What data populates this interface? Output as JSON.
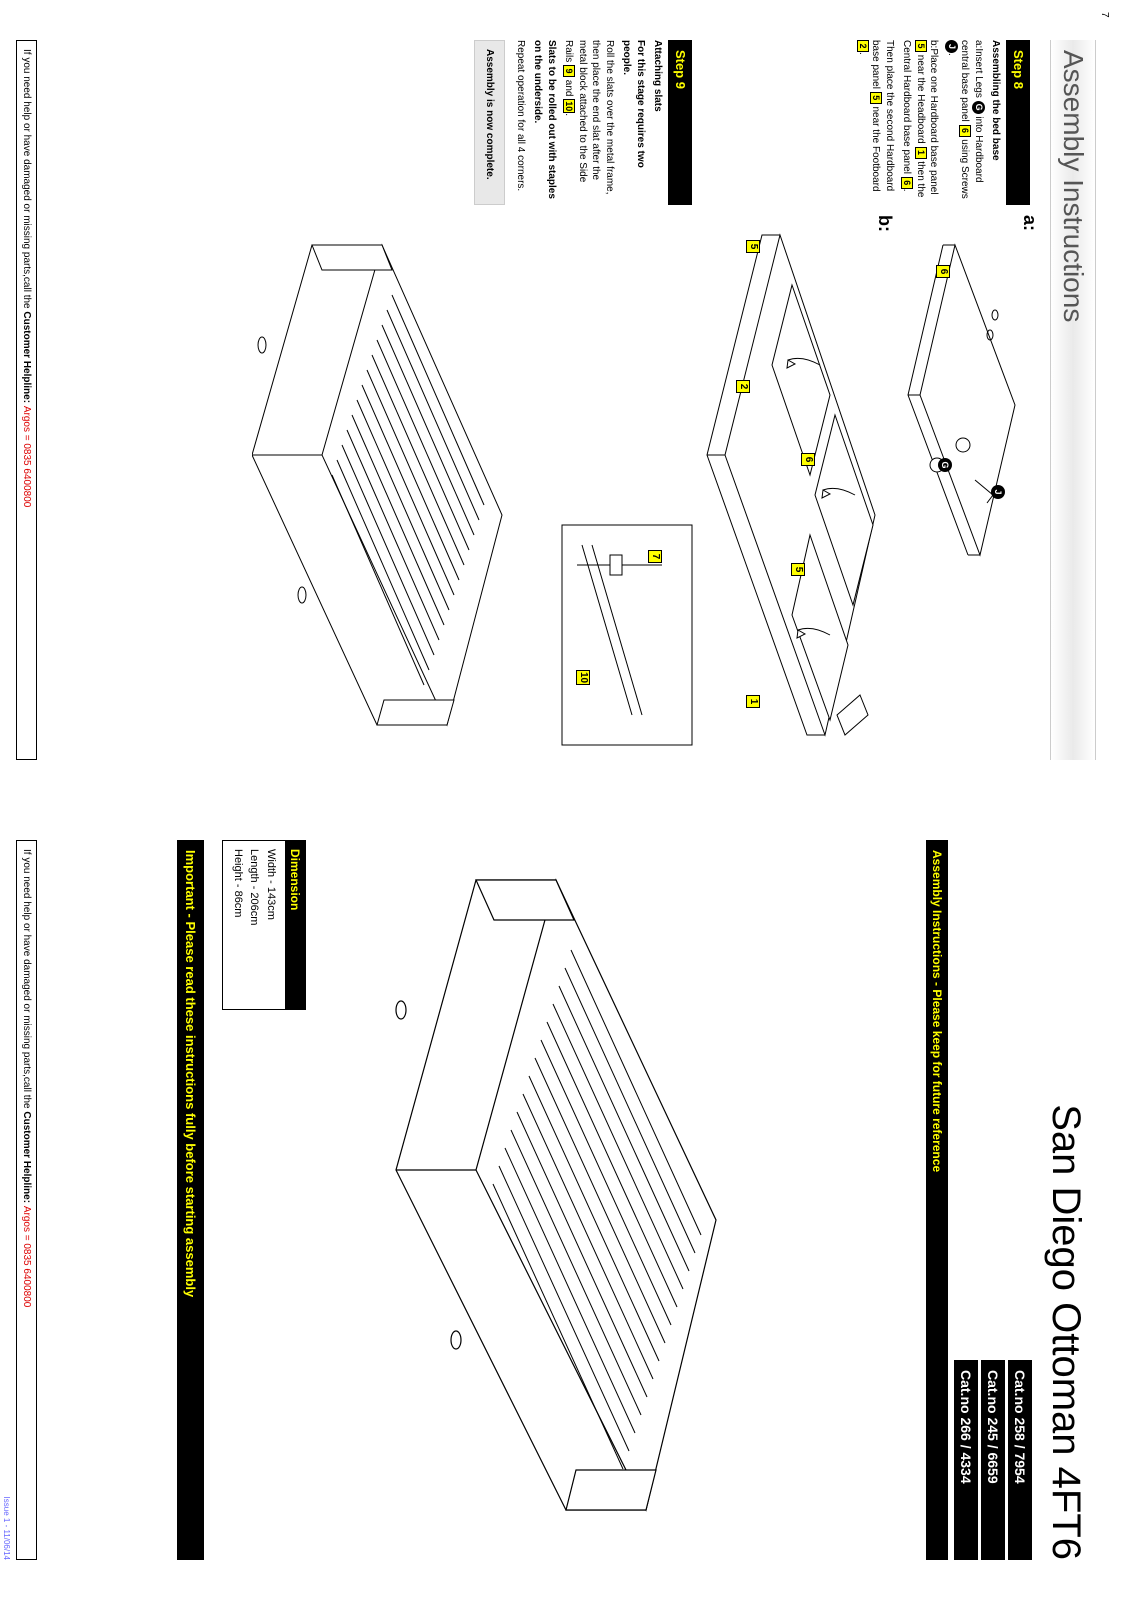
{
  "left": {
    "title": "Assembly Instructions",
    "pageNumber": "7",
    "step8": {
      "header": "Step 8",
      "heading": "Assembling the bed base",
      "line_a_pre": "a:Insert Legs ",
      "g": "G",
      "line_a_mid": " into Hardboard central base panel ",
      "p6": "6",
      "line_a_mid2": " using Screws ",
      "j": "J",
      "dot": ".",
      "line_b_pre": "b:Place one Hardboard base panel ",
      "p5": "5",
      "line_b_mid": " near the Headboard ",
      "p1": "1",
      "line_b_mid2": " then the Central Hardboard base panel ",
      "line_b_end": ".",
      "line_c_pre": "Then place the second Hardboard base panel ",
      "line_c_mid": " near the Footboard ",
      "p2": "2",
      "line_c_end": "."
    },
    "fig8": {
      "marker_a": "a:",
      "marker_b": "b:",
      "labels": {
        "l6a": "6",
        "l6b": "6",
        "lG": "G",
        "lJ": "J",
        "l5a": "5",
        "l5b": "5",
        "l2": "2",
        "l1": "1"
      }
    },
    "step9": {
      "header": "Step 9",
      "heading": "Attaching slats",
      "line1": "For this stage requires two people.",
      "line2_pre": "Roll the slats over the metal frame, then place the end slat after the metal block attached to the Side Rails ",
      "p9": "9",
      "and": " and ",
      "p10": "10",
      "line2_end": ".",
      "line3": "Slats to be rolled out with staples on the underside.",
      "line4": "Repeat operation for all 4 corners.",
      "complete": "Assembly is now complete."
    },
    "fig9": {
      "l7": "7",
      "l10": "10"
    },
    "footer_pre": "If you need help or have damaged or missing parts,call the ",
    "footer_bold": "Customer Helpline: ",
    "footer_phone": "Argos = 0835 6400800"
  },
  "right": {
    "title": "San Diego Ottoman 4FT6",
    "catnos": [
      "Cat.no 258 / 7954",
      "Cat.no 245 / 6659",
      "Cat.no 266 / 4334"
    ],
    "keep": "Assembly Instructions - Please keep for future reference",
    "dim_header": "Dimension",
    "dim_lines": [
      "Width - 143cm",
      "Length - 206cm",
      "Height - 86cm"
    ],
    "important": "Important - Please read these instructions fully before starting assembly",
    "footer_pre": "If you need help or have damaged or missing parts,call the ",
    "footer_bold": "Customer Helpline: ",
    "footer_phone": "Argos = 0835 6400800",
    "issue": "Issue 1 - 11/06/14"
  }
}
